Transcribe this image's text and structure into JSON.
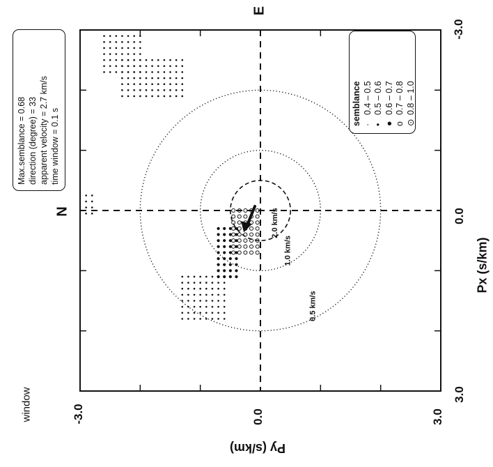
{
  "corner_label": "window",
  "compass": {
    "north": "N",
    "east": "E"
  },
  "axes": {
    "xlabel": "Px (s/km)",
    "ylabel": "Py (s/km)",
    "x_ticks": [
      "3.0",
      "0.0",
      "-3.0"
    ],
    "y_ticks": [
      "-3.0",
      "0.0",
      "3.0"
    ]
  },
  "info_box": [
    "Max.semblance = 0.68",
    "direction (degree) = 33",
    "apparent velocity = 2.7 km/s",
    "time window = 0.1 s"
  ],
  "legend": {
    "title": "semblance",
    "items": [
      {
        "symbol": "·",
        "label": "0.4 – 0.5"
      },
      {
        "symbol": "•",
        "label": "0.5 – 0.6"
      },
      {
        "symbol": "●",
        "label": "0.6 – 0.7"
      },
      {
        "symbol": "o",
        "label": "0.7 – 0.8"
      },
      {
        "symbol": "⊙",
        "label": "0.8 – 1.0"
      }
    ]
  },
  "chart_data": {
    "type": "scatter",
    "xlim": [
      -3.0,
      3.0
    ],
    "ylim": [
      -3.0,
      3.0
    ],
    "grid": false,
    "legend_position": "top-right",
    "velocity_circles": [
      {
        "label": "2.0 km/s",
        "radius_s_per_km": 0.5,
        "style": "dashed"
      },
      {
        "label": "1.0 km/s",
        "radius_s_per_km": 1.0,
        "style": "dotted"
      },
      {
        "label": "0.5 km/s",
        "radius_s_per_km": 2.0,
        "style": "dotted"
      }
    ],
    "arrow": {
      "x": 0.2,
      "y": -0.3
    },
    "clusters": [
      {
        "x_range": [
          0.0,
          0.7
        ],
        "y_range": [
          -0.45,
          -0.05
        ],
        "level": 3
      },
      {
        "x_range": [
          0.3,
          1.1
        ],
        "y_range": [
          -0.7,
          -0.4
        ],
        "level": 1
      },
      {
        "x_range": [
          1.1,
          1.8
        ],
        "y_range": [
          -1.3,
          -0.6
        ],
        "level": 0
      },
      {
        "x_range": [
          -0.25,
          0.05
        ],
        "y_range": [
          -2.9,
          -2.75
        ],
        "level": 0
      },
      {
        "x_range": [
          -2.9,
          -2.3
        ],
        "y_range": [
          -2.6,
          -1.95
        ],
        "level": 0
      },
      {
        "x_range": [
          -2.5,
          -1.85
        ],
        "y_range": [
          -2.3,
          -1.3
        ],
        "level": 0
      }
    ]
  }
}
